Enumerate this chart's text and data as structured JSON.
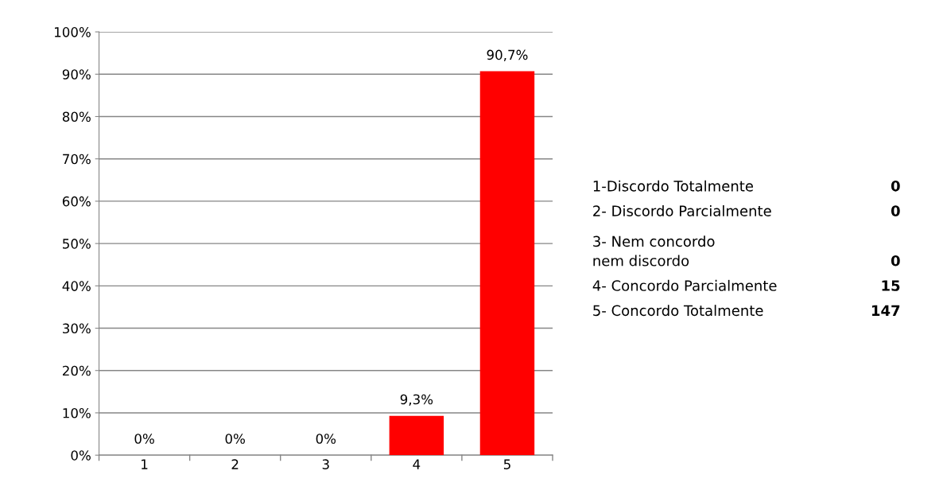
{
  "chart_data": {
    "type": "bar",
    "categories": [
      "1",
      "2",
      "3",
      "4",
      "5"
    ],
    "values": [
      0,
      0,
      0,
      9.3,
      90.7
    ],
    "color": "#ff0000",
    "value_labels": [
      "0%",
      "0%",
      "0%",
      "9,3%",
      "90,7%"
    ],
    "ylim": [
      0,
      100
    ],
    "yticks": [
      {
        "value": 0,
        "label": "0%"
      },
      {
        "value": 10,
        "label": "10%"
      },
      {
        "value": 20,
        "label": "20%"
      },
      {
        "value": 30,
        "label": "30%"
      },
      {
        "value": 40,
        "label": "40%"
      },
      {
        "value": 50,
        "label": "50%"
      },
      {
        "value": 60,
        "label": "60%"
      },
      {
        "value": 70,
        "label": "70%"
      },
      {
        "value": 80,
        "label": "80%"
      },
      {
        "value": 90,
        "label": "90%"
      },
      {
        "value": 100,
        "label": "100%"
      }
    ],
    "grid": "y",
    "annotations": [
      "1-Discordo Totalmente",
      "0",
      "2- Discordo Parcialmente",
      "0",
      "3- Nem concordo\nnem discordo",
      "0",
      "4- Concordo Parcialmente",
      "15",
      "5- Concordo Totalmente",
      "147"
    ]
  }
}
